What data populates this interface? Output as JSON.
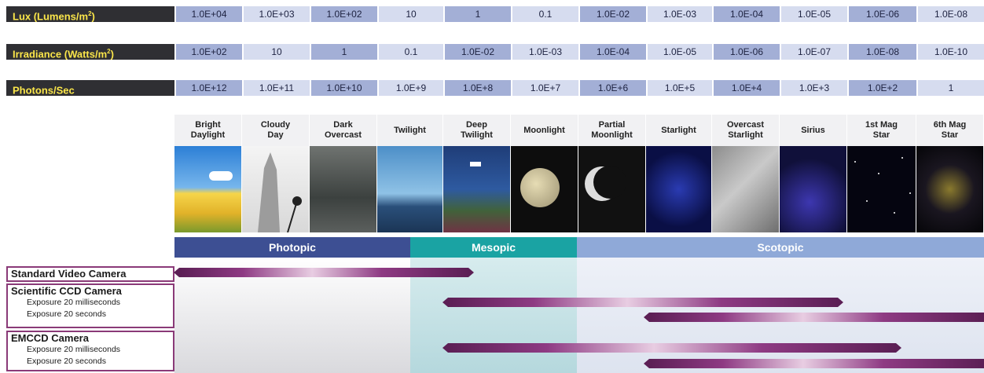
{
  "measures": [
    {
      "label_main": "Lux (Lumens/m",
      "label_sup": "2",
      "label_end": ")",
      "values": [
        "1.0E+04",
        "1.0E+03",
        "1.0E+02",
        "10",
        "1",
        "0.1",
        "1.0E-02",
        "1.0E-03",
        "1.0E-04",
        "1.0E-05",
        "1.0E-06",
        "1.0E-08"
      ]
    },
    {
      "label_main": "Irradiance  (Watts/m",
      "label_sup": "2",
      "label_end": ")",
      "values": [
        "1.0E+02",
        "10",
        "1",
        "0.1",
        "1.0E-02",
        "1.0E-03",
        "1.0E-04",
        "1.0E-05",
        "1.0E-06",
        "1.0E-07",
        "1.0E-08",
        "1.0E-10"
      ]
    },
    {
      "label_main": "Photons/Sec",
      "label_sup": "",
      "label_end": "",
      "values": [
        "1.0E+12",
        "1.0E+11",
        "1.0E+10",
        "1.0E+9",
        "1.0E+8",
        "1.0E+7",
        "1.0E+6",
        "1.0E+5",
        "1.0E+4",
        "1.0E+3",
        "1.0E+2",
        "1"
      ]
    }
  ],
  "conditions": [
    "Bright\nDaylight",
    "Cloudy\nDay",
    "Dark\nOvercast",
    "Twilight",
    "Deep\nTwilight",
    "Moonlight",
    "Partial\nMoonlight",
    "Starlight",
    "Overcast\nStarlight",
    "Sirius",
    "1st Mag\nStar",
    "6th Mag\nStar"
  ],
  "vision": {
    "photopic": "Photopic",
    "mesopic": "Mesopic",
    "scotopic": "Scotopic"
  },
  "colors": {
    "photopic": "#3d4f93",
    "mesopic": "#1aa3a3",
    "scotopic": "#8fa9d8",
    "bar": "#8e3a83"
  },
  "cameras": {
    "standard": {
      "title": "Standard Video Camera"
    },
    "ccd": {
      "title": "Scientific CCD Camera",
      "exp_ms": "Exposure 20 milliseconds",
      "exp_s": "Exposure 20 seconds"
    },
    "emccd": {
      "title": "EMCCD Camera",
      "exp_ms": "Exposure 20 milliseconds",
      "exp_s": "Exposure 20 seconds"
    }
  }
}
